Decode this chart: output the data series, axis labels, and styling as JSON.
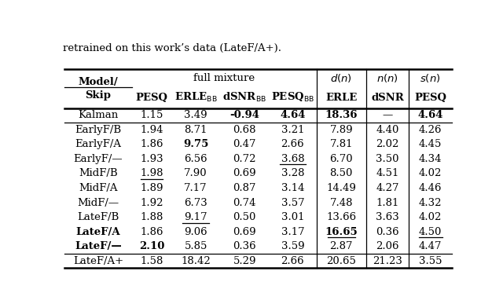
{
  "rows": [
    [
      "Kalman",
      "1.15",
      "3.49",
      "-0.94",
      "4.64",
      "18.36",
      "—",
      "4.64"
    ],
    [
      "EarlyF/B",
      "1.94",
      "8.71",
      "0.68",
      "3.21",
      "7.89",
      "4.40",
      "4.26"
    ],
    [
      "EarlyF/A",
      "1.86",
      "9.75",
      "0.47",
      "2.66",
      "7.81",
      "2.02",
      "4.45"
    ],
    [
      "EarlyF/—",
      "1.93",
      "6.56",
      "0.72",
      "3.68",
      "6.70",
      "3.50",
      "4.34"
    ],
    [
      "MidF/B",
      "1.98",
      "7.90",
      "0.69",
      "3.28",
      "8.50",
      "4.51",
      "4.02"
    ],
    [
      "MidF/A",
      "1.89",
      "7.17",
      "0.87",
      "3.14",
      "14.49",
      "4.27",
      "4.46"
    ],
    [
      "MidF/—",
      "1.92",
      "6.73",
      "0.74",
      "3.57",
      "7.48",
      "1.81",
      "4.32"
    ],
    [
      "LateF/B",
      "1.88",
      "9.17",
      "0.50",
      "3.01",
      "13.66",
      "3.63",
      "4.02"
    ],
    [
      "LateF/A",
      "1.86",
      "9.06",
      "0.69",
      "3.17",
      "16.65",
      "0.36",
      "4.50"
    ],
    [
      "LateF/—",
      "2.10",
      "5.85",
      "0.36",
      "3.59",
      "2.87",
      "2.06",
      "4.47"
    ],
    [
      "LateF/A+",
      "1.58",
      "18.42",
      "5.29",
      "2.66",
      "20.65",
      "21.23",
      "3.55"
    ]
  ],
  "bold_cells": {
    "0,3": true,
    "0,4": true,
    "0,5": true,
    "0,7": true,
    "2,2": true,
    "8,0": true,
    "8,5": true,
    "9,0": true,
    "9,1": true
  },
  "underline_cells": {
    "3,4": true,
    "4,1": true,
    "7,2": true,
    "8,5": true,
    "8,7": true
  },
  "bold_row_label": [
    8
  ],
  "background_color": "#ffffff",
  "figsize": [
    6.4,
    3.87
  ],
  "dpi": 100
}
